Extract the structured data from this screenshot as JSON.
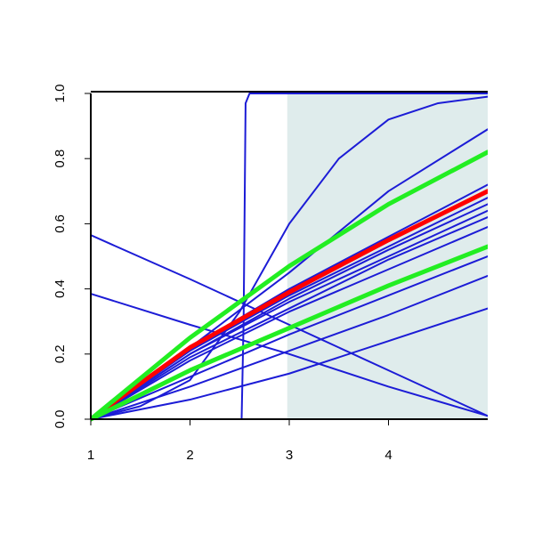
{
  "chart_data": {
    "type": "line",
    "xlim": [
      1,
      5
    ],
    "ylim": [
      0,
      1
    ],
    "xticks": [
      1,
      2,
      3,
      4
    ],
    "yticks": [
      {
        "value": 0,
        "label": "0.0"
      },
      {
        "value": 0.2,
        "label": "0.2"
      },
      {
        "value": 0.4,
        "label": "0.4"
      },
      {
        "value": 0.6,
        "label": "0.6"
      },
      {
        "value": 0.8,
        "label": "0.8"
      },
      {
        "value": 1,
        "label": "1.0"
      }
    ],
    "shade": {
      "xlim": [
        2.98,
        5
      ],
      "color": "#dfecec"
    },
    "series": [
      {
        "color": "#1c1cd6",
        "width": 2,
        "x": [
          1,
          2.52,
          2.54,
          2.56,
          2.6,
          5
        ],
        "values": [
          0,
          0,
          0.3,
          0.97,
          1,
          1
        ]
      },
      {
        "color": "#1c1cd6",
        "width": 2,
        "x": [
          1,
          1.5,
          2,
          2.5,
          3,
          3.5,
          4,
          4.5,
          5
        ],
        "values": [
          0,
          0.04,
          0.12,
          0.33,
          0.6,
          0.8,
          0.92,
          0.97,
          0.99
        ]
      },
      {
        "color": "#1c1cd6",
        "width": 2,
        "x": [
          1,
          2,
          3,
          4,
          5
        ],
        "values": [
          0,
          0.22,
          0.45,
          0.7,
          0.89
        ]
      },
      {
        "color": "#1c1cd6",
        "width": 2,
        "x": [
          1,
          2,
          3,
          4,
          5
        ],
        "values": [
          0,
          0.22,
          0.4,
          0.56,
          0.72
        ]
      },
      {
        "color": "#1c1cd6",
        "width": 2,
        "x": [
          1,
          2,
          3,
          4,
          5
        ],
        "values": [
          0,
          0.21,
          0.38,
          0.53,
          0.68
        ]
      },
      {
        "color": "#1c1cd6",
        "width": 2,
        "x": [
          1,
          2,
          3,
          4,
          5
        ],
        "values": [
          0,
          0.2,
          0.37,
          0.52,
          0.66
        ]
      },
      {
        "color": "#1c1cd6",
        "width": 2,
        "x": [
          1,
          2,
          3,
          4,
          5
        ],
        "values": [
          0,
          0.2,
          0.36,
          0.5,
          0.64
        ]
      },
      {
        "color": "#1c1cd6",
        "width": 2,
        "x": [
          1,
          2,
          3,
          4,
          5
        ],
        "values": [
          0,
          0.19,
          0.34,
          0.49,
          0.62
        ]
      },
      {
        "color": "#1c1cd6",
        "width": 2,
        "x": [
          1,
          2,
          3,
          4,
          5
        ],
        "values": [
          0,
          0.18,
          0.33,
          0.46,
          0.59
        ]
      },
      {
        "color": "#1c1cd6",
        "width": 2,
        "x": [
          1,
          2,
          3,
          4,
          5
        ],
        "values": [
          0,
          0.13,
          0.26,
          0.38,
          0.5
        ]
      },
      {
        "color": "#1c1cd6",
        "width": 2,
        "x": [
          1,
          2,
          3,
          4,
          5
        ],
        "values": [
          0,
          0.1,
          0.21,
          0.32,
          0.44
        ]
      },
      {
        "color": "#1c1cd6",
        "width": 2,
        "x": [
          1,
          2,
          3,
          4,
          5
        ],
        "values": [
          0,
          0.06,
          0.14,
          0.24,
          0.34
        ]
      },
      {
        "color": "#1c1cd6",
        "width": 2,
        "x": [
          1,
          2,
          3,
          4,
          5
        ],
        "values": [
          0.565,
          0.43,
          0.29,
          0.15,
          0.01
        ]
      },
      {
        "color": "#1c1cd6",
        "width": 2,
        "x": [
          1,
          2,
          3,
          4,
          5
        ],
        "values": [
          0.385,
          0.29,
          0.2,
          0.1,
          0.01
        ]
      },
      {
        "color": "#ff0000",
        "width": 5,
        "x": [
          1,
          2,
          3,
          4,
          5
        ],
        "values": [
          0,
          0.22,
          0.39,
          0.55,
          0.7
        ]
      },
      {
        "color": "#22ee22",
        "width": 5,
        "x": [
          1,
          2,
          3,
          4,
          5
        ],
        "values": [
          0,
          0.25,
          0.47,
          0.66,
          0.82
        ]
      },
      {
        "color": "#22ee22",
        "width": 5,
        "x": [
          1,
          2,
          3,
          4,
          5
        ],
        "values": [
          0,
          0.15,
          0.28,
          0.41,
          0.53
        ]
      }
    ]
  }
}
